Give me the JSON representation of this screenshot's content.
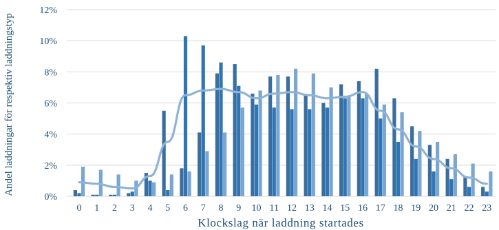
{
  "chart_data": {
    "type": "bar",
    "title": "",
    "xlabel": "Klockslag när laddning startades",
    "ylabel": "Andel laddningar för respektiv laddningstyp",
    "ylim": [
      0,
      12
    ],
    "yticks": [
      "0%",
      "2%",
      "4%",
      "6%",
      "8%",
      "10%",
      "12%"
    ],
    "ytick_values": [
      0,
      2,
      4,
      6,
      8,
      10,
      12
    ],
    "grid": true,
    "legend": "none",
    "categories": [
      "0",
      "1",
      "2",
      "3",
      "4",
      "5",
      "6",
      "7",
      "8",
      "9",
      "10",
      "11",
      "12",
      "13",
      "14",
      "15",
      "16",
      "17",
      "18",
      "19",
      "20",
      "21",
      "22",
      "23"
    ],
    "series": [
      {
        "type": "bar",
        "color": "#3a6e9e",
        "values": [
          0.4,
          0.1,
          0.1,
          0.2,
          1.5,
          5.5,
          1.8,
          4.1,
          7.9,
          8.5,
          6.6,
          7.7,
          7.7,
          6.5,
          6.0,
          7.2,
          7.4,
          8.2,
          6.3,
          4.5,
          3.3,
          2.4,
          1.3,
          0.6
        ]
      },
      {
        "type": "bar",
        "color": "#2e75b6",
        "values": [
          0.2,
          0.1,
          0.1,
          0.3,
          1.0,
          0.4,
          10.3,
          9.7,
          8.6,
          7.1,
          5.9,
          5.7,
          5.6,
          5.6,
          5.7,
          6.3,
          6.3,
          5.0,
          3.5,
          2.4,
          1.6,
          1.1,
          0.6,
          0.3
        ]
      },
      {
        "type": "bar",
        "color": "#7aa6d2",
        "values": [
          1.9,
          1.7,
          1.4,
          1.0,
          0.9,
          1.4,
          1.6,
          2.9,
          4.1,
          5.7,
          6.8,
          7.8,
          8.2,
          7.9,
          7.0,
          6.4,
          6.6,
          5.9,
          5.4,
          4.2,
          3.5,
          2.7,
          2.1,
          1.6
        ]
      },
      {
        "type": "line",
        "color": "#8fb3d6",
        "values": [
          0.9,
          0.8,
          0.6,
          0.5,
          1.3,
          3.5,
          6.5,
          6.8,
          6.9,
          6.7,
          6.3,
          6.6,
          6.7,
          6.5,
          6.3,
          6.4,
          6.7,
          5.5,
          4.3,
          3.2,
          2.4,
          1.8,
          1.2,
          0.8
        ]
      }
    ]
  }
}
